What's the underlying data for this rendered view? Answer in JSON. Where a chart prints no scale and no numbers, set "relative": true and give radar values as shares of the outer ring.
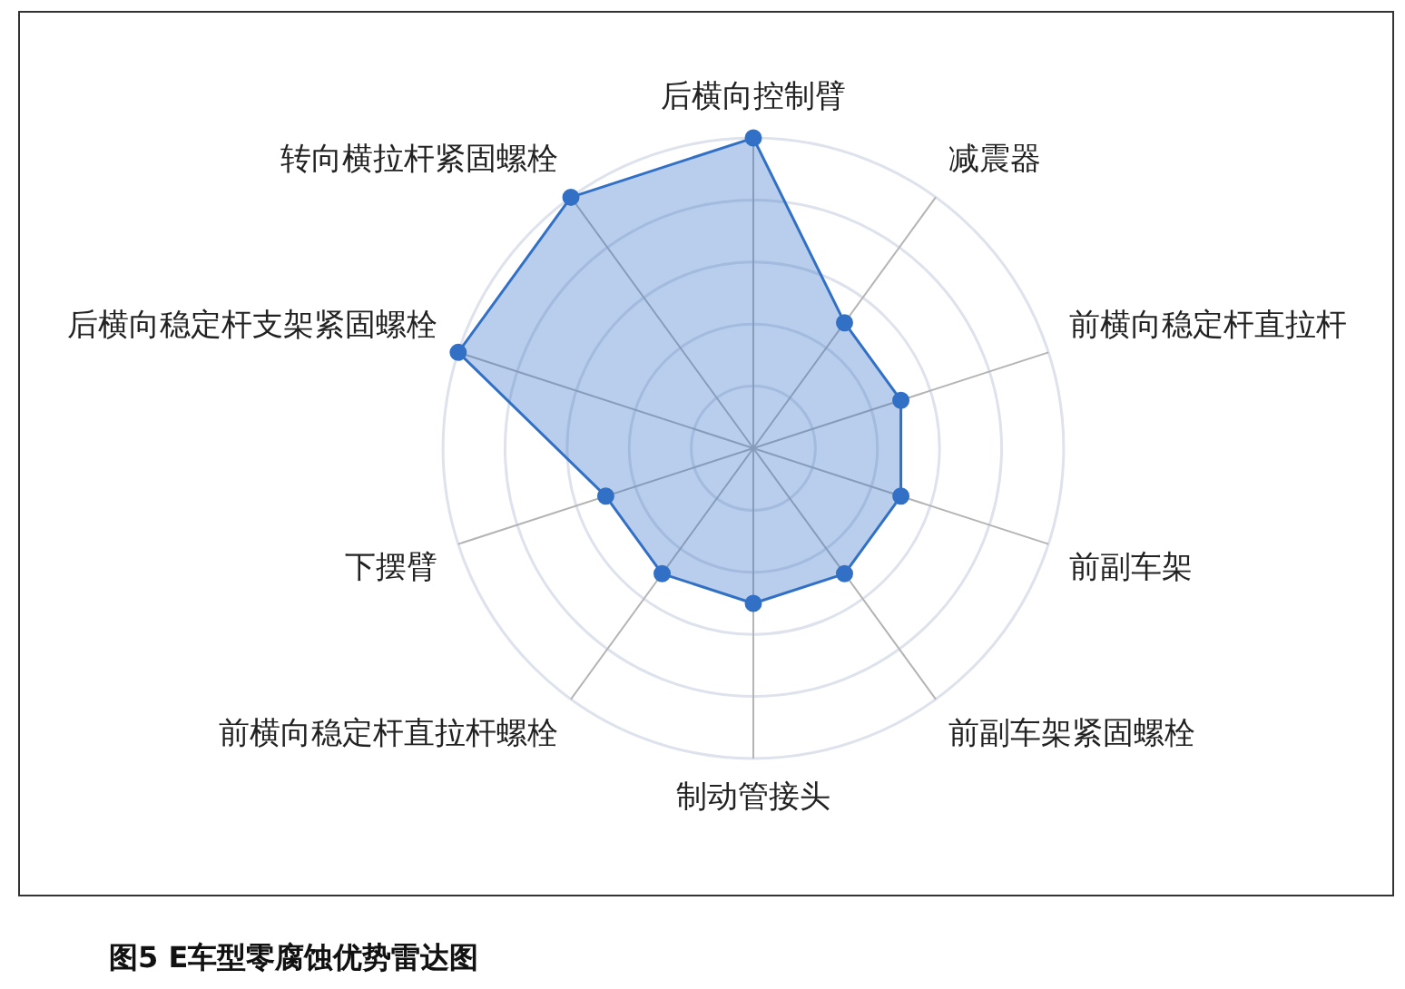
{
  "chart_data": {
    "type": "radar",
    "title": "图5 E车型零腐蚀优势雷达图",
    "categories": [
      "后横向控制臂",
      "减震器",
      "前横向稳定杆直拉杆",
      "前副车架",
      "前副车架紧固螺栓",
      "制动管接头",
      "前横向稳定杆直拉杆螺栓",
      "下摆臂",
      "后横向稳定杆支架紧固螺栓",
      "转向横拉杆紧固螺栓"
    ],
    "series": [
      {
        "color": "#3270c6",
        "values": [
          1,
          0.5,
          0.5,
          0.5,
          0.5,
          0.5,
          0.5,
          0.5,
          1,
          1
        ]
      }
    ],
    "relative": true,
    "grid": true,
    "marker": "circle"
  }
}
